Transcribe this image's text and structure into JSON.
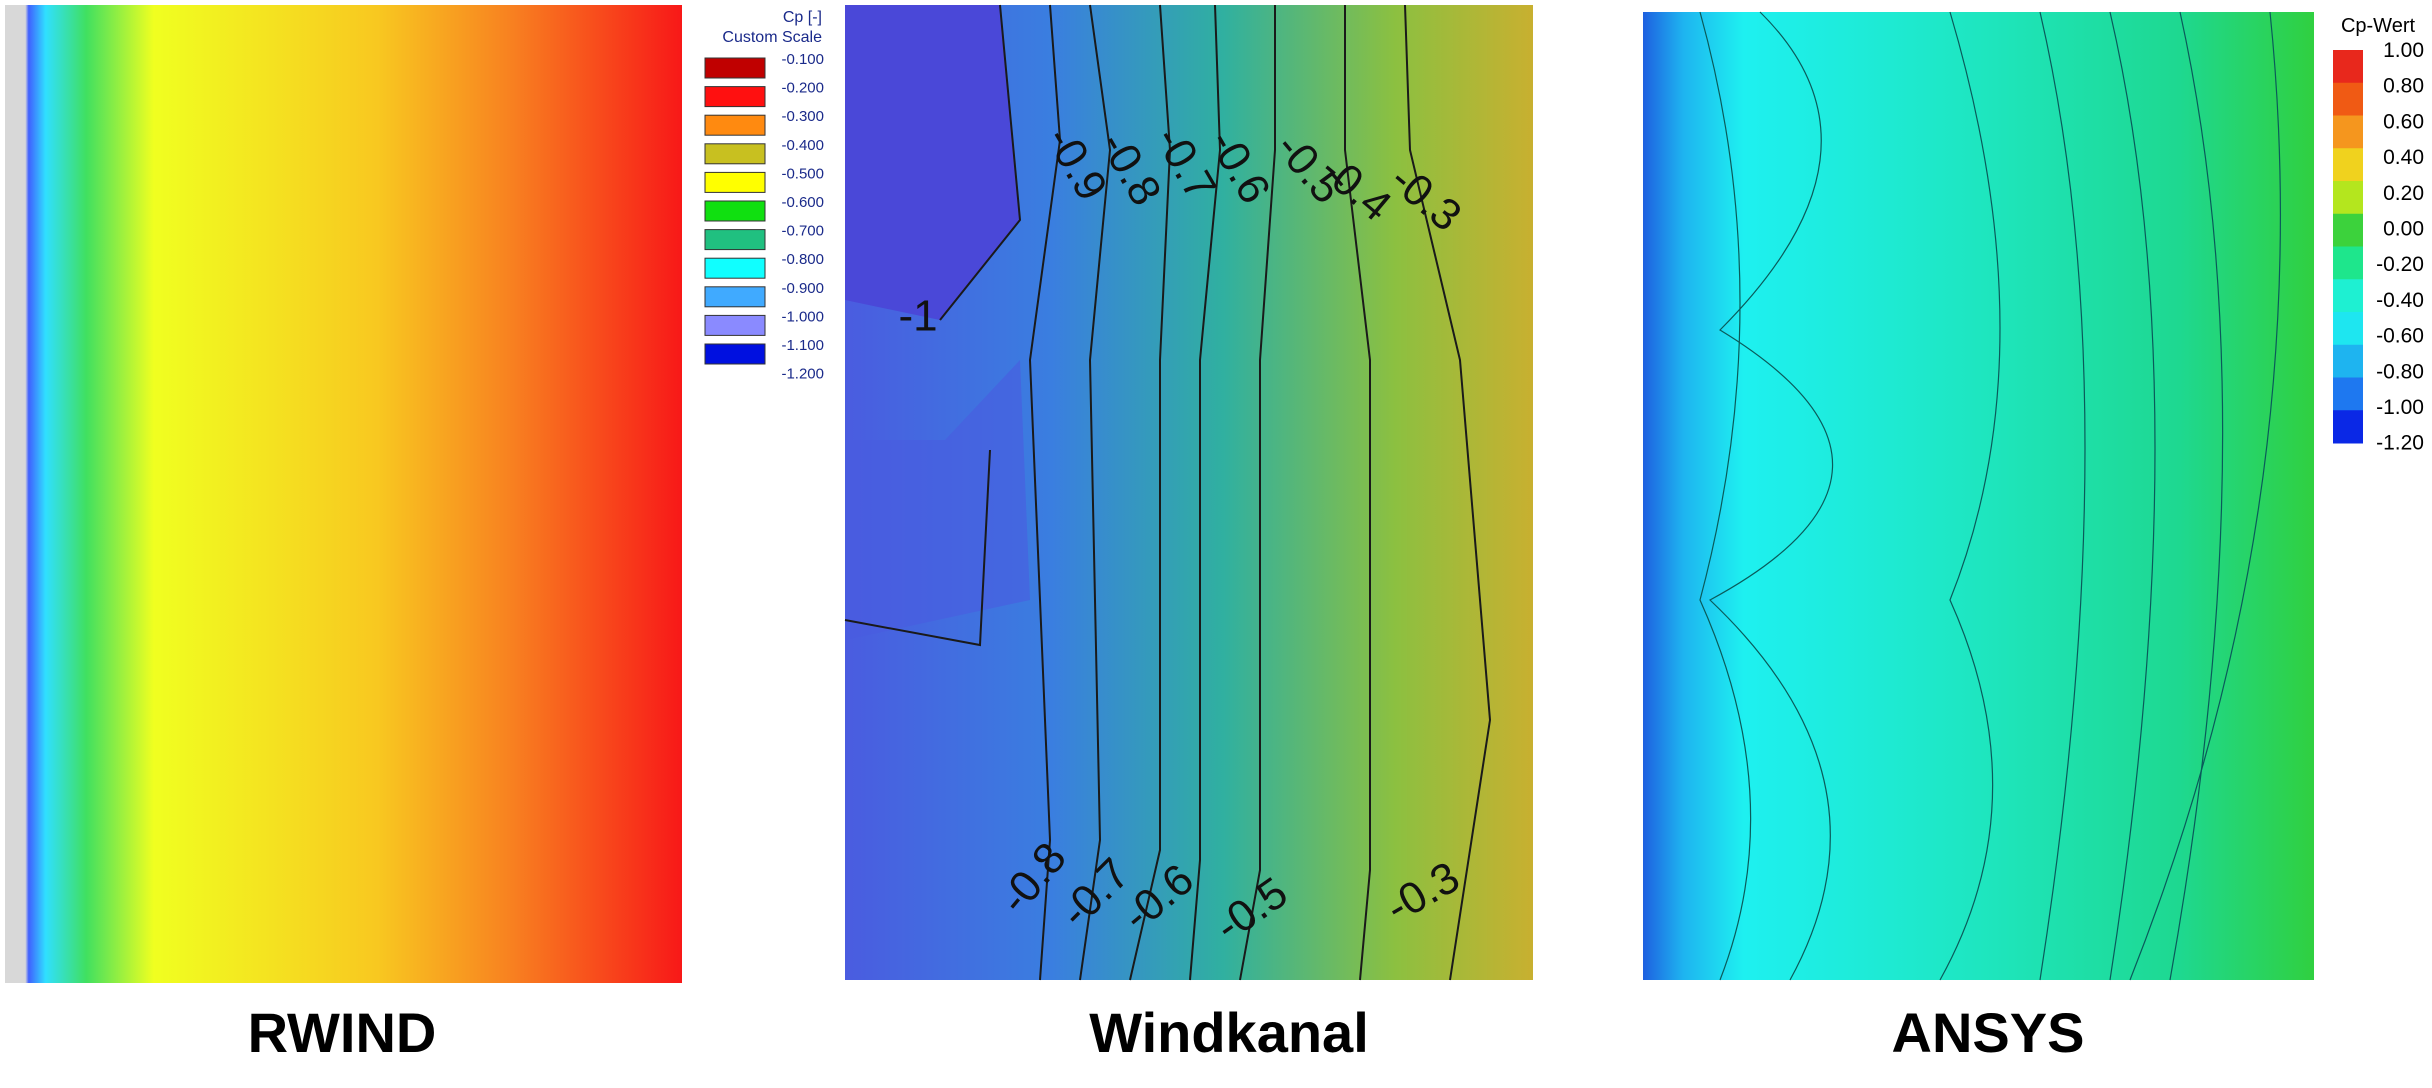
{
  "panels": [
    {
      "caption": "RWIND",
      "legend": {
        "title": [
          "Cp [-]",
          "Custom Scale"
        ],
        "labels": [
          "-0.100",
          "-0.200",
          "-0.300",
          "-0.400",
          "-0.500",
          "-0.600",
          "-0.700",
          "-0.800",
          "-0.900",
          "-1.000",
          "-1.100",
          "-1.200"
        ],
        "colors": [
          "#c00000",
          "#ff1010",
          "#ff8a10",
          "#c8c020",
          "#ffff00",
          "#10e010",
          "#20c080",
          "#10ffff",
          "#40aaff",
          "#8a8aff",
          "#0010e0"
        ]
      }
    },
    {
      "caption": "Windkanal",
      "contour_labels": [
        "-0.9",
        "-0.8",
        "-0.7",
        "-0.6",
        "-0.5",
        "-0.4",
        "-0.3",
        "-1",
        "-0.8",
        "-0.7",
        "-0.6",
        "-0.5",
        "-0.3"
      ]
    },
    {
      "caption": "ANSYS",
      "legend": {
        "title": [
          "Cp-Wert"
        ],
        "labels": [
          "1.00",
          "0.80",
          "0.60",
          "0.40",
          "0.20",
          "0.00",
          "-0.20",
          "-0.40",
          "-0.60",
          "-0.80",
          "-1.00",
          "-1.20"
        ],
        "colors": [
          "#e8281c",
          "#f05a14",
          "#f5961e",
          "#f0d21e",
          "#b4e61e",
          "#3cd23c",
          "#1ee68c",
          "#1ef0d2",
          "#1ee6f0",
          "#1eb4f0",
          "#1e78f0",
          "#0a28e6"
        ]
      }
    }
  ]
}
